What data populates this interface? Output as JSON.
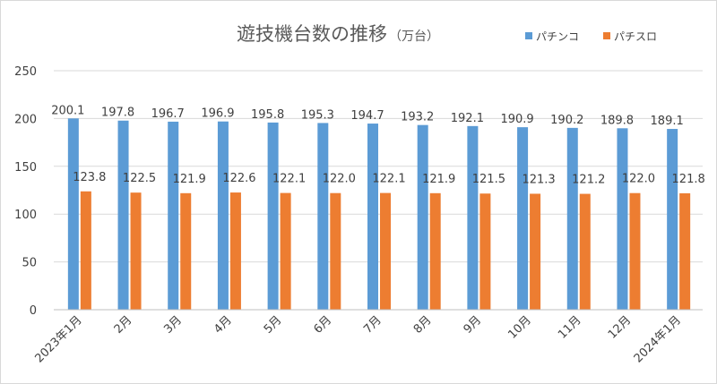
{
  "chart_data": {
    "type": "bar",
    "title": "遊技機台数の推移",
    "title_unit": "（万台）",
    "categories": [
      "2023年1月",
      "2月",
      "3月",
      "4月",
      "5月",
      "6月",
      "7月",
      "8月",
      "9月",
      "10月",
      "11月",
      "12月",
      "2024年1月"
    ],
    "series": [
      {
        "name": "パチンコ",
        "color": "#5b9bd5",
        "values": [
          200.1,
          197.8,
          196.7,
          196.9,
          195.8,
          195.3,
          194.7,
          193.2,
          192.1,
          190.9,
          190.2,
          189.8,
          189.1
        ]
      },
      {
        "name": "パチスロ",
        "color": "#ed7d31",
        "values": [
          123.8,
          122.5,
          121.9,
          122.6,
          122.1,
          122.0,
          122.1,
          121.9,
          121.5,
          121.3,
          121.2,
          122.0,
          121.8
        ]
      }
    ],
    "ylim": [
      0,
      250
    ],
    "yticks": [
      0,
      50,
      100,
      150,
      200,
      250
    ],
    "grid": true,
    "legend_position": "top-right",
    "data_labels": true,
    "value_format": "one-decimal"
  }
}
